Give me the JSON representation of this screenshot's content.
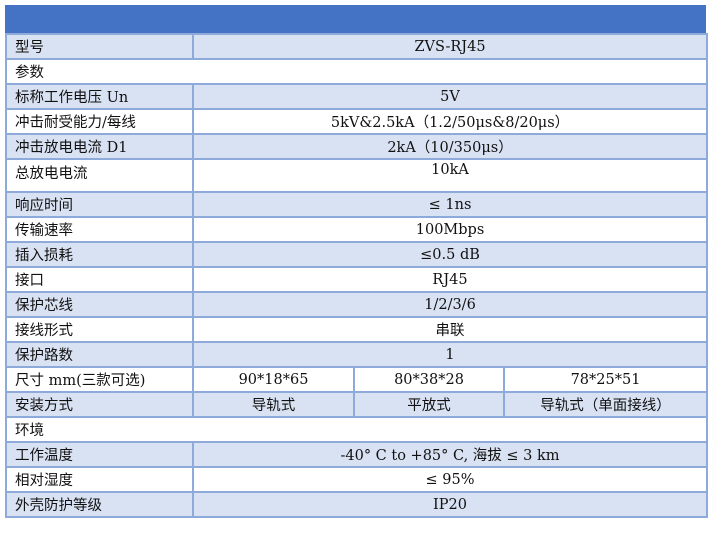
{
  "rows": [
    {
      "label": "型号",
      "value": "ZVS-RJ45"
    },
    {
      "label": "参数"
    },
    {
      "label": "标称工作电压 Un",
      "value": "5V"
    },
    {
      "label": "冲击耐受能力/每线",
      "value": "5kV&2.5kA（1.2/50μs&8/20μs）"
    },
    {
      "label": "冲击放电电流 D1",
      "value": "2kA（10/350μs）"
    },
    {
      "label": "总放电电流",
      "value": "10kA"
    },
    {
      "label": "响应时间",
      "value": "≤ 1ns"
    },
    {
      "label": "传输速率",
      "value": "100Mbps"
    },
    {
      "label": "插入损耗",
      "value": "≤0.5 dB"
    },
    {
      "label": "接口",
      "value": "RJ45"
    },
    {
      "label": "保护芯线",
      "value": "1/2/3/6"
    },
    {
      "label": "接线形式",
      "value": "串联"
    },
    {
      "label": "保护路数",
      "value": "1"
    },
    {
      "label": "尺寸 mm(三款可选)",
      "values": [
        "90*18*65",
        "80*38*28",
        "78*25*51"
      ]
    },
    {
      "label": "安装方式",
      "values": [
        "导轨式",
        "平放式",
        "导轨式（单面接线）"
      ]
    },
    {
      "label": "环境"
    },
    {
      "label": "工作温度",
      "value": "-40° C to +85° C, 海拔 ≤ 3 km"
    },
    {
      "label": "相对湿度",
      "value": "≤ 95%"
    },
    {
      "label": "外壳防护等级",
      "value": "IP20"
    }
  ],
  "colors": {
    "header": "#4472C4",
    "band": "#D9E2F3",
    "border": "#8EAADB"
  }
}
